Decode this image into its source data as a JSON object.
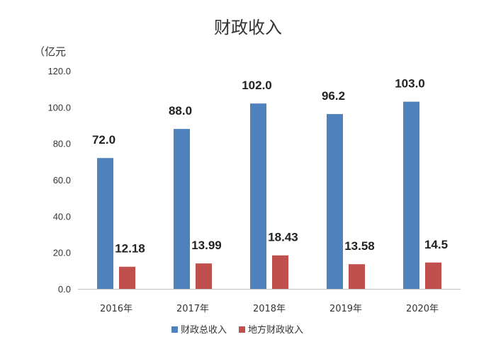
{
  "chart_data": {
    "type": "bar",
    "title": "财政收入",
    "unit_label": "（亿元",
    "categories": [
      "2016年",
      "2017年",
      "2018年",
      "2019年",
      "2020年"
    ],
    "series": [
      {
        "name": "财政总收入",
        "color": "#4F81BD",
        "values": [
          72.0,
          88.0,
          102.0,
          96.2,
          103.0
        ],
        "labels": [
          "72.0",
          "88.0",
          "102.0",
          "96.2",
          "103.0"
        ]
      },
      {
        "name": "地方财政收入",
        "color": "#C0504D",
        "values": [
          12.18,
          13.99,
          18.43,
          13.58,
          14.5
        ],
        "labels": [
          "12.18",
          "13.99",
          "18.43",
          "13.58",
          "14.5"
        ]
      }
    ],
    "yticks": [
      "0.0",
      "20.0",
      "40.0",
      "60.0",
      "80.0",
      "100.0",
      "120.0"
    ],
    "ylim": [
      0,
      120
    ],
    "grid": false,
    "legend_position": "bottom"
  }
}
